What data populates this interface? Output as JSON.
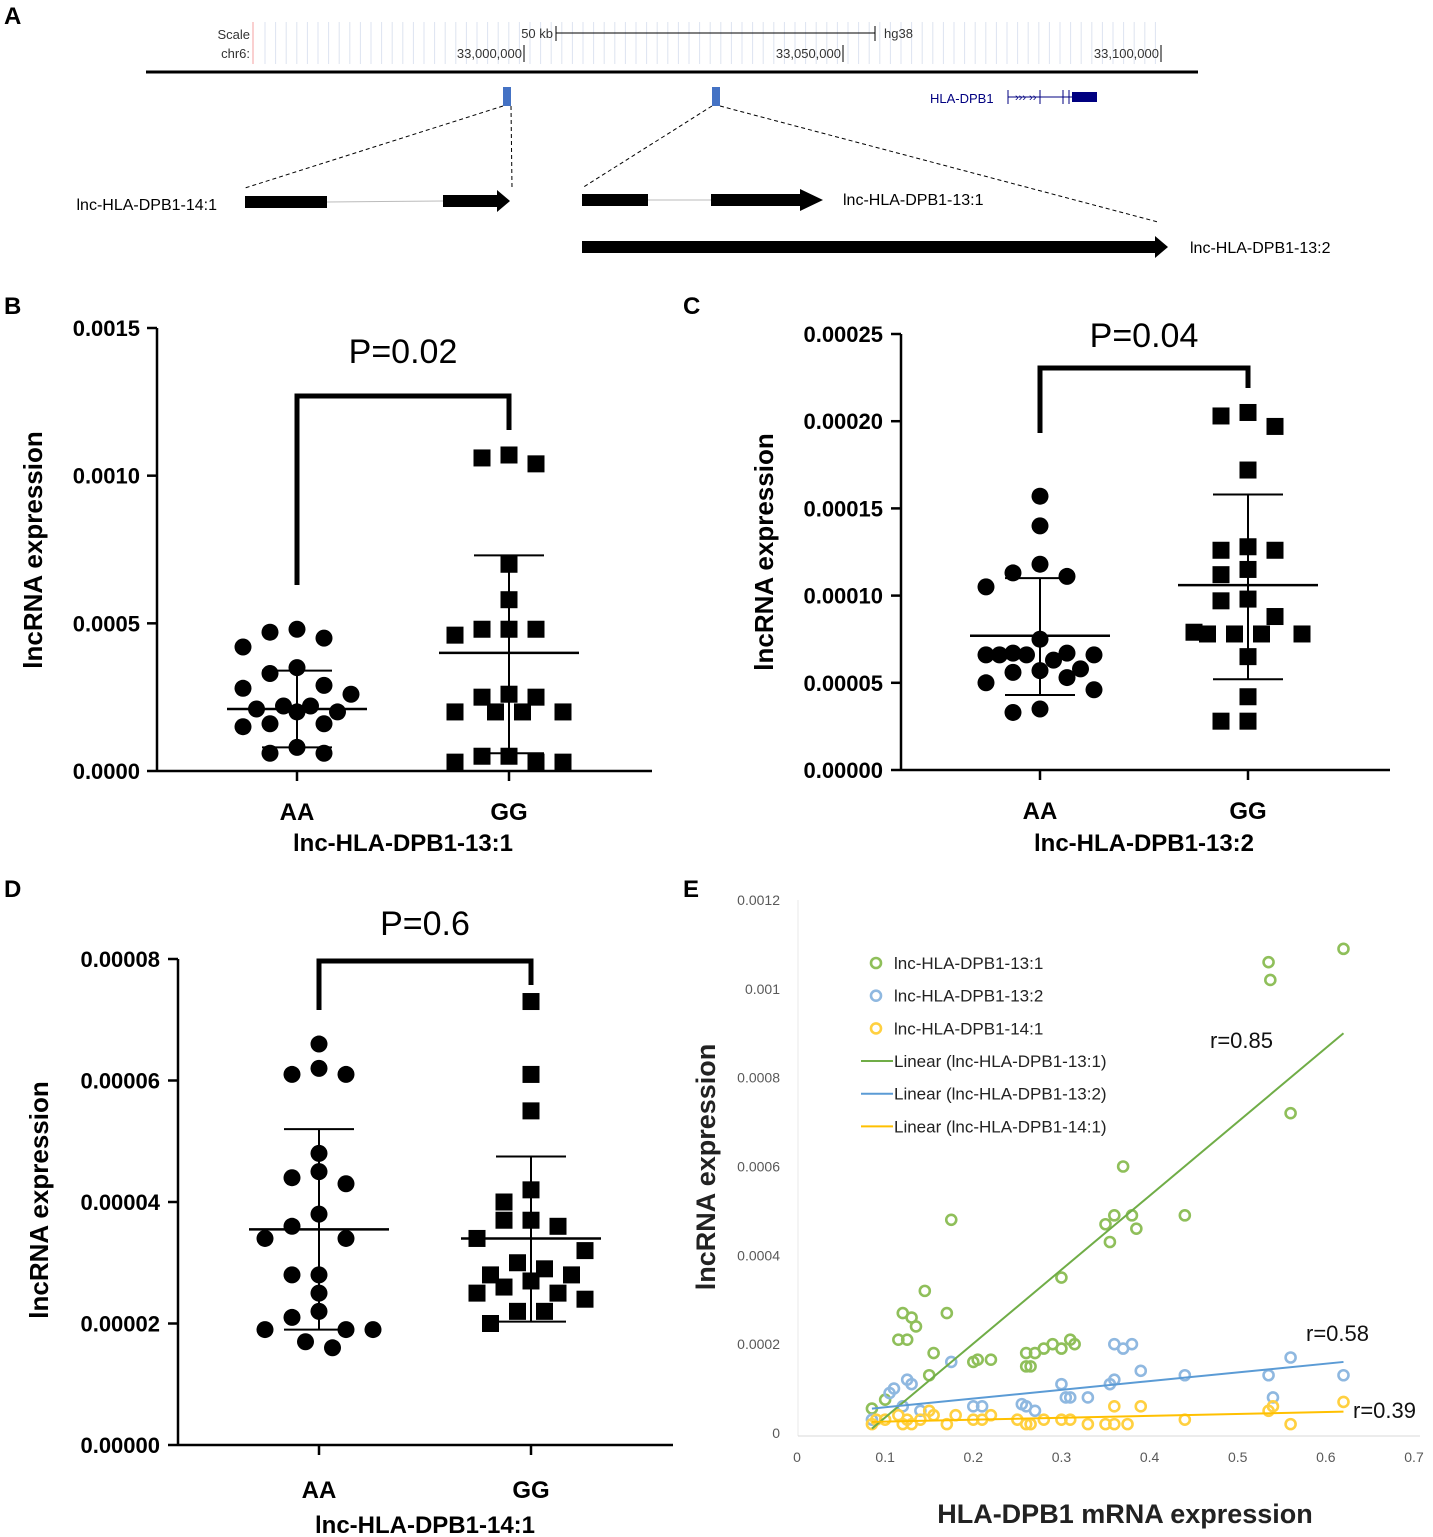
{
  "panel_letters": [
    "A",
    "B",
    "C",
    "D",
    "E"
  ],
  "genome_browser": {
    "scale_label": "Scale",
    "chrom_label": "chr6:",
    "scale_bar_label": "50 kb",
    "assembly": "hg38",
    "positions": [
      "33,000,000",
      "33,050,000",
      "33,100,000"
    ],
    "gene_label": "HLA-DPB1",
    "gene_color": "#000080",
    "locus_color": "#4472c4",
    "transcripts": [
      "lnc-HLA-DPB1-14:1",
      "lnc-HLA-DPB1-13:1",
      "lnc-HLA-DPB1-13:2"
    ]
  },
  "chart_data": [
    {
      "panel": "B",
      "type": "scatter",
      "title": "P=0.02",
      "xlabel": "lnc-HLA-DPB1-13:1",
      "ylabel": "lncRNA expression",
      "ylim": [
        0,
        0.0015
      ],
      "ytick_labels": [
        "0.0000",
        "0.0005",
        "0.0010",
        "0.0015"
      ],
      "categories": [
        "AA",
        "GG"
      ],
      "groups": [
        {
          "name": "AA",
          "marker": "circle",
          "mean": 0.00021,
          "sd_upper": 0.00034,
          "sd_lower": 8e-05,
          "values": [
            0.00048,
            0.00047,
            0.00045,
            0.00042,
            0.00035,
            0.00033,
            0.00029,
            0.00028,
            0.00026,
            0.00022,
            0.00022,
            0.00021,
            0.0002,
            0.0002,
            0.00016,
            0.00016,
            0.00015,
            8e-05,
            6e-05,
            6e-05
          ]
        },
        {
          "name": "GG",
          "marker": "square",
          "mean": 0.0004,
          "sd_upper": 0.00073,
          "sd_lower": 6e-05,
          "values": [
            0.00107,
            0.00106,
            0.00104,
            0.0007,
            0.00058,
            0.00048,
            0.00048,
            0.00048,
            0.00046,
            0.00026,
            0.00025,
            0.00025,
            0.0002,
            0.0002,
            0.0002,
            0.0002,
            5e-05,
            5e-05,
            3e-05,
            3e-05,
            3e-05
          ]
        }
      ]
    },
    {
      "panel": "C",
      "type": "scatter",
      "title": "P=0.04",
      "xlabel": "lnc-HLA-DPB1-13:2",
      "ylabel": "lncRNA expression",
      "ylim": [
        0,
        0.00025
      ],
      "ytick_labels": [
        "0.00000",
        "0.00005",
        "0.00010",
        "0.00015",
        "0.00020",
        "0.00025"
      ],
      "categories": [
        "AA",
        "GG"
      ],
      "groups": [
        {
          "name": "AA",
          "marker": "circle",
          "mean": 7.7e-05,
          "sd_upper": 0.00011,
          "sd_lower": 4.3e-05,
          "values": [
            0.000157,
            0.00014,
            0.000118,
            0.000113,
            0.000111,
            0.000105,
            7.5e-05,
            6.7e-05,
            6.7e-05,
            6.6e-05,
            6.6e-05,
            6.6e-05,
            6.3e-05,
            6.6e-05,
            5.8e-05,
            5.7e-05,
            5.6e-05,
            5.3e-05,
            5e-05,
            4.6e-05,
            3.5e-05,
            3.3e-05
          ]
        },
        {
          "name": "GG",
          "marker": "square",
          "mean": 0.000106,
          "sd_upper": 0.000158,
          "sd_lower": 5.2e-05,
          "values": [
            0.000205,
            0.000203,
            0.000197,
            0.000172,
            0.000128,
            0.000126,
            0.000126,
            0.000115,
            0.000112,
            9.8e-05,
            9.7e-05,
            8.8e-05,
            7.9e-05,
            7.8e-05,
            7.8e-05,
            7.8e-05,
            7.8e-05,
            6.5e-05,
            4.2e-05,
            2.8e-05,
            2.8e-05
          ]
        }
      ]
    },
    {
      "panel": "D",
      "type": "scatter",
      "title": "P=0.6",
      "xlabel": "lnc-HLA-DPB1-14:1",
      "ylabel": "lncRNA expression",
      "ylim": [
        0,
        8e-05
      ],
      "ytick_labels": [
        "0.00000",
        "0.00002",
        "0.00004",
        "0.00006",
        "0.00008"
      ],
      "categories": [
        "AA",
        "GG"
      ],
      "groups": [
        {
          "name": "AA",
          "marker": "circle",
          "mean": 3.55e-05,
          "sd_upper": 5.2e-05,
          "sd_lower": 1.9e-05,
          "values": [
            6.6e-05,
            6.2e-05,
            6.1e-05,
            6.1e-05,
            4.8e-05,
            4.5e-05,
            4.4e-05,
            4.3e-05,
            3.8e-05,
            3.6e-05,
            3.4e-05,
            3.4e-05,
            2.8e-05,
            2.8e-05,
            2.5e-05,
            2.2e-05,
            2.1e-05,
            1.9e-05,
            1.9e-05,
            1.9e-05,
            1.7e-05,
            1.6e-05
          ]
        },
        {
          "name": "GG",
          "marker": "square",
          "mean": 3.4e-05,
          "sd_upper": 4.75e-05,
          "sd_lower": 2.03e-05,
          "values": [
            7.3e-05,
            6.1e-05,
            5.5e-05,
            4.2e-05,
            4e-05,
            3.7e-05,
            3.7e-05,
            3.6e-05,
            3.4e-05,
            3.2e-05,
            3e-05,
            2.9e-05,
            2.8e-05,
            2.8e-05,
            2.7e-05,
            2.6e-05,
            2.5e-05,
            2.5e-05,
            2.4e-05,
            2.2e-05,
            2.2e-05,
            2e-05
          ]
        }
      ]
    },
    {
      "panel": "E",
      "type": "scatter",
      "xlabel": "HLA-DPB1 mRNA expression",
      "ylabel": "lncRNA expression",
      "xlim": [
        0,
        0.7
      ],
      "ylim": [
        0,
        0.0012
      ],
      "xtick_labels": [
        "0",
        "0.1",
        "0.2",
        "0.3",
        "0.4",
        "0.5",
        "0.6",
        "0.7"
      ],
      "ytick_labels": [
        "0",
        "0.0002",
        "0.0004",
        "0.0006",
        "0.0008",
        "0.001",
        "0.0012"
      ],
      "legend_position": "top-left",
      "series": [
        {
          "name": "lnc-HLA-DPB1-13:1",
          "trend_label": "Linear (lnc-HLA-DPB1-13:1)",
          "color": "#8fbf5a",
          "line_color": "#70ad47",
          "r_label": "r=0.85",
          "trend": [
            [
              0.085,
              1e-05
            ],
            [
              0.62,
              0.0009
            ]
          ],
          "points": [
            [
              0.085,
              5.5e-05
            ],
            [
              0.1,
              7.5e-05
            ],
            [
              0.115,
              0.00021
            ],
            [
              0.125,
              0.00021
            ],
            [
              0.12,
              0.00027
            ],
            [
              0.13,
              0.00026
            ],
            [
              0.135,
              0.00024
            ],
            [
              0.145,
              0.00032
            ],
            [
              0.15,
              0.00013
            ],
            [
              0.155,
              0.00018
            ],
            [
              0.175,
              0.00048
            ],
            [
              0.17,
              0.00027
            ],
            [
              0.2,
              0.00016
            ],
            [
              0.205,
              0.000165
            ],
            [
              0.22,
              0.000165
            ],
            [
              0.26,
              0.00018
            ],
            [
              0.26,
              0.00015
            ],
            [
              0.265,
              0.00015
            ],
            [
              0.27,
              0.00018
            ],
            [
              0.28,
              0.00019
            ],
            [
              0.29,
              0.0002
            ],
            [
              0.3,
              0.00019
            ],
            [
              0.31,
              0.00021
            ],
            [
              0.315,
              0.0002
            ],
            [
              0.3,
              0.00035
            ],
            [
              0.35,
              0.00047
            ],
            [
              0.355,
              0.00043
            ],
            [
              0.36,
              0.00049
            ],
            [
              0.37,
              0.0006
            ],
            [
              0.38,
              0.00049
            ],
            [
              0.385,
              0.00046
            ],
            [
              0.44,
              0.00049
            ],
            [
              0.535,
              0.00106
            ],
            [
              0.537,
              0.00102
            ],
            [
              0.56,
              0.00072
            ],
            [
              0.62,
              0.00109
            ]
          ]
        },
        {
          "name": "lnc-HLA-DPB1-13:2",
          "trend_label": "Linear (lnc-HLA-DPB1-13:2)",
          "color": "#8fb8e0",
          "line_color": "#5b9bd5",
          "r_label": "r=0.58",
          "trend": [
            [
              0.085,
              5.5e-05
            ],
            [
              0.62,
              0.00016
            ]
          ],
          "points": [
            [
              0.085,
              3e-05
            ],
            [
              0.105,
              9e-05
            ],
            [
              0.11,
              0.0001
            ],
            [
              0.125,
              0.00012
            ],
            [
              0.13,
              0.00011
            ],
            [
              0.12,
              6e-05
            ],
            [
              0.14,
              5e-05
            ],
            [
              0.175,
              0.00016
            ],
            [
              0.2,
              6e-05
            ],
            [
              0.21,
              6e-05
            ],
            [
              0.255,
              6.5e-05
            ],
            [
              0.26,
              6e-05
            ],
            [
              0.27,
              5e-05
            ],
            [
              0.3,
              0.00011
            ],
            [
              0.305,
              8e-05
            ],
            [
              0.31,
              8e-05
            ],
            [
              0.33,
              8e-05
            ],
            [
              0.355,
              0.00011
            ],
            [
              0.36,
              0.00012
            ],
            [
              0.36,
              0.0002
            ],
            [
              0.37,
              0.00019
            ],
            [
              0.38,
              0.0002
            ],
            [
              0.39,
              0.00014
            ],
            [
              0.44,
              0.00013
            ],
            [
              0.535,
              0.00013
            ],
            [
              0.54,
              8e-05
            ],
            [
              0.56,
              0.00017
            ],
            [
              0.62,
              0.00013
            ]
          ]
        },
        {
          "name": "lnc-HLA-DPB1-14:1",
          "trend_label": "Linear (lnc-HLA-DPB1-14:1)",
          "color": "#ffd040",
          "line_color": "#ffc000",
          "r_label": "r=0.39",
          "trend": [
            [
              0.085,
              2.5e-05
            ],
            [
              0.62,
              4.8e-05
            ]
          ],
          "points": [
            [
              0.085,
              2e-05
            ],
            [
              0.09,
              3e-05
            ],
            [
              0.1,
              3e-05
            ],
            [
              0.115,
              4e-05
            ],
            [
              0.12,
              2e-05
            ],
            [
              0.125,
              3e-05
            ],
            [
              0.13,
              2e-05
            ],
            [
              0.14,
              3e-05
            ],
            [
              0.15,
              5e-05
            ],
            [
              0.155,
              4e-05
            ],
            [
              0.17,
              2e-05
            ],
            [
              0.18,
              4e-05
            ],
            [
              0.2,
              3e-05
            ],
            [
              0.21,
              3e-05
            ],
            [
              0.22,
              4e-05
            ],
            [
              0.25,
              3e-05
            ],
            [
              0.26,
              2e-05
            ],
            [
              0.265,
              2e-05
            ],
            [
              0.28,
              3e-05
            ],
            [
              0.3,
              3e-05
            ],
            [
              0.31,
              3e-05
            ],
            [
              0.33,
              2e-05
            ],
            [
              0.35,
              2e-05
            ],
            [
              0.36,
              6e-05
            ],
            [
              0.36,
              2e-05
            ],
            [
              0.375,
              2e-05
            ],
            [
              0.39,
              6e-05
            ],
            [
              0.44,
              3e-05
            ],
            [
              0.535,
              5e-05
            ],
            [
              0.54,
              6e-05
            ],
            [
              0.56,
              2e-05
            ],
            [
              0.62,
              7e-05
            ]
          ]
        }
      ]
    }
  ]
}
